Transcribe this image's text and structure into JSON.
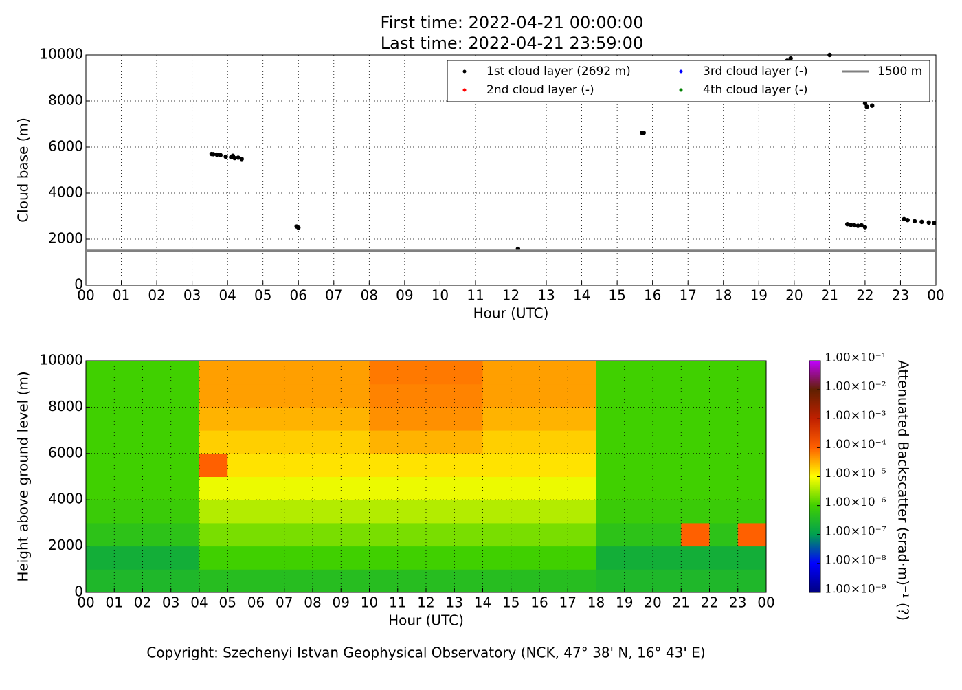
{
  "chart_data": [
    {
      "type": "scatter",
      "title": [
        "First time: 2022-04-21 00:00:00",
        "Last time: 2022-04-21 23:59:00"
      ],
      "x_label": "Hour (UTC)",
      "y_label": "Cloud base (m)",
      "xlim": [
        0,
        24
      ],
      "ylim": [
        0,
        10000
      ],
      "xticks": [
        {
          "value": 0,
          "label": "00"
        },
        {
          "value": 1,
          "label": "01"
        },
        {
          "value": 2,
          "label": "02"
        },
        {
          "value": 3,
          "label": "03"
        },
        {
          "value": 4,
          "label": "04"
        },
        {
          "value": 5,
          "label": "05"
        },
        {
          "value": 6,
          "label": "06"
        },
        {
          "value": 7,
          "label": "07"
        },
        {
          "value": 8,
          "label": "08"
        },
        {
          "value": 9,
          "label": "09"
        },
        {
          "value": 10,
          "label": "10"
        },
        {
          "value": 11,
          "label": "11"
        },
        {
          "value": 12,
          "label": "12"
        },
        {
          "value": 13,
          "label": "13"
        },
        {
          "value": 14,
          "label": "14"
        },
        {
          "value": 15,
          "label": "15"
        },
        {
          "value": 16,
          "label": "16"
        },
        {
          "value": 17,
          "label": "17"
        },
        {
          "value": 18,
          "label": "18"
        },
        {
          "value": 19,
          "label": "19"
        },
        {
          "value": 20,
          "label": "20"
        },
        {
          "value": 21,
          "label": "21"
        },
        {
          "value": 22,
          "label": "22"
        },
        {
          "value": 23,
          "label": "23"
        },
        {
          "value": 24,
          "label": "00"
        }
      ],
      "yticks": [
        0,
        2000,
        4000,
        6000,
        8000,
        10000
      ],
      "grid": true,
      "legend": "upper right",
      "series": [
        {
          "name": "1st cloud layer (2692 m)",
          "color": "#000000",
          "x": [
            3.55,
            3.6,
            3.7,
            3.8,
            3.95,
            4.1,
            4.15,
            4.2,
            4.3,
            4.4,
            5.95,
            6.0,
            12.2,
            15.7,
            15.75,
            19.8,
            19.9,
            21.0,
            22.0,
            22.05,
            22.2,
            21.5,
            21.6,
            21.7,
            21.8,
            21.9,
            22.0,
            23.1,
            23.2,
            23.4,
            23.6,
            23.8,
            23.95
          ],
          "values": [
            5700,
            5690,
            5670,
            5650,
            5580,
            5560,
            5620,
            5520,
            5540,
            5480,
            2550,
            2500,
            1580,
            6620,
            6620,
            9750,
            9850,
            10000,
            7900,
            7750,
            7800,
            2650,
            2620,
            2600,
            2580,
            2600,
            2520,
            2870,
            2830,
            2780,
            2750,
            2720,
            2700
          ]
        },
        {
          "name": "2nd cloud layer (-)",
          "color": "#ff0000",
          "x": [],
          "values": []
        },
        {
          "name": "3rd cloud layer (-)",
          "color": "#0000ff",
          "x": [],
          "values": []
        },
        {
          "name": "4th cloud layer (-)",
          "color": "#008000",
          "x": [],
          "values": []
        },
        {
          "name": "1500 m",
          "color": "#808080",
          "line": true,
          "values": [
            1500
          ]
        }
      ]
    },
    {
      "type": "heatmap",
      "x_label": "Hour (UTC)",
      "y_label": "Height above ground level (m)",
      "xlim": [
        0,
        24
      ],
      "ylim": [
        0,
        10000
      ],
      "xticks": [
        {
          "value": 0,
          "label": "00"
        },
        {
          "value": 1,
          "label": "01"
        },
        {
          "value": 2,
          "label": "02"
        },
        {
          "value": 3,
          "label": "03"
        },
        {
          "value": 4,
          "label": "04"
        },
        {
          "value": 5,
          "label": "05"
        },
        {
          "value": 6,
          "label": "06"
        },
        {
          "value": 7,
          "label": "07"
        },
        {
          "value": 8,
          "label": "08"
        },
        {
          "value": 9,
          "label": "09"
        },
        {
          "value": 10,
          "label": "10"
        },
        {
          "value": 11,
          "label": "11"
        },
        {
          "value": 12,
          "label": "12"
        },
        {
          "value": 13,
          "label": "13"
        },
        {
          "value": 14,
          "label": "14"
        },
        {
          "value": 15,
          "label": "15"
        },
        {
          "value": 16,
          "label": "16"
        },
        {
          "value": 17,
          "label": "17"
        },
        {
          "value": 18,
          "label": "18"
        },
        {
          "value": 19,
          "label": "19"
        },
        {
          "value": 20,
          "label": "20"
        },
        {
          "value": 21,
          "label": "21"
        },
        {
          "value": 22,
          "label": "22"
        },
        {
          "value": 23,
          "label": "23"
        },
        {
          "value": 24,
          "label": "00"
        }
      ],
      "yticks": [
        0,
        2000,
        4000,
        6000,
        8000,
        10000
      ],
      "grid": true,
      "x": [
        0,
        1,
        2,
        3,
        4,
        5,
        6,
        7,
        8,
        9,
        10,
        11,
        12,
        13,
        14,
        15,
        16,
        17,
        18,
        19,
        20,
        21,
        22,
        23,
        24
      ],
      "y": [
        0,
        1000,
        2000,
        3000,
        4000,
        5000,
        6000,
        7000,
        8000,
        9000,
        10000
      ],
      "values": [
        [
          3e-07,
          3e-07,
          3e-07,
          3e-07,
          4e-07,
          4e-07,
          4e-07,
          4e-07,
          4e-07,
          4e-07,
          4e-07,
          4e-07,
          4e-07,
          4e-07,
          4e-07,
          4e-07,
          4e-07,
          4e-07,
          3e-07,
          3e-07,
          3e-07,
          3e-07,
          3e-07,
          3e-07
        ],
        [
          2e-07,
          2e-07,
          2e-07,
          2e-07,
          1e-06,
          1e-06,
          1e-06,
          1e-06,
          1e-06,
          1e-06,
          1e-06,
          1e-06,
          1e-06,
          1e-06,
          1e-06,
          1e-06,
          1e-06,
          1e-06,
          2e-07,
          2e-07,
          2e-07,
          2e-07,
          2e-07,
          2e-07
        ],
        [
          5e-07,
          5e-07,
          5e-07,
          5e-07,
          2e-06,
          2e-06,
          2e-06,
          2e-06,
          2e-06,
          2e-06,
          2e-06,
          2e-06,
          2e-06,
          2e-06,
          2e-06,
          2e-06,
          2e-06,
          2e-06,
          5e-07,
          5e-07,
          5e-07,
          0.0001,
          5e-07,
          0.0001
        ],
        [
          8e-07,
          8e-07,
          8e-07,
          8e-07,
          4e-06,
          4e-06,
          4e-06,
          4e-06,
          4e-06,
          4e-06,
          4e-06,
          4e-06,
          4e-06,
          4e-06,
          4e-06,
          4e-06,
          4e-06,
          4e-06,
          8e-07,
          8e-07,
          8e-07,
          8e-07,
          8e-07,
          8e-07
        ],
        [
          1e-06,
          1e-06,
          1e-06,
          1e-06,
          8e-06,
          8e-06,
          8e-06,
          8e-06,
          8e-06,
          8e-06,
          8e-06,
          8e-06,
          8e-06,
          8e-06,
          8e-06,
          8e-06,
          8e-06,
          8e-06,
          1e-06,
          1e-06,
          1e-06,
          1e-06,
          1e-06,
          1e-06
        ],
        [
          1e-06,
          1e-06,
          1e-06,
          1e-06,
          0.0001,
          1.5e-05,
          1.5e-05,
          1.5e-05,
          1.5e-05,
          1.5e-05,
          1.5e-05,
          1.5e-05,
          1.5e-05,
          1.5e-05,
          1.5e-05,
          1.5e-05,
          1.5e-05,
          1.5e-05,
          1e-06,
          1e-06,
          1e-06,
          1e-06,
          1e-06,
          1e-06
        ],
        [
          1e-06,
          1e-06,
          1e-06,
          1e-06,
          2e-05,
          2e-05,
          2e-05,
          2e-05,
          2e-05,
          2e-05,
          3e-05,
          3e-05,
          3e-05,
          3e-05,
          2e-05,
          2e-05,
          2e-05,
          2e-05,
          1e-06,
          1e-06,
          1e-06,
          1e-06,
          1e-06,
          1e-06
        ],
        [
          1e-06,
          1e-06,
          1e-06,
          1e-06,
          3e-05,
          3e-05,
          3e-05,
          3e-05,
          3e-05,
          3e-05,
          5e-05,
          5e-05,
          5e-05,
          5e-05,
          3e-05,
          3e-05,
          3e-05,
          3e-05,
          1e-06,
          1e-06,
          1e-06,
          1e-06,
          1e-06,
          1e-06
        ],
        [
          1e-06,
          1e-06,
          1e-06,
          1e-06,
          4e-05,
          4e-05,
          4e-05,
          4e-05,
          4e-05,
          4e-05,
          6e-05,
          6e-05,
          6e-05,
          6e-05,
          4e-05,
          4e-05,
          4e-05,
          4e-05,
          1e-06,
          1e-06,
          1e-06,
          1e-06,
          1e-06,
          1e-06
        ],
        [
          1e-06,
          1e-06,
          1e-06,
          1e-06,
          4e-05,
          4e-05,
          4e-05,
          4e-05,
          4e-05,
          4e-05,
          7e-05,
          7e-05,
          7e-05,
          7e-05,
          4e-05,
          4e-05,
          4e-05,
          4e-05,
          1e-06,
          1e-06,
          1e-06,
          1e-06,
          1e-06,
          1e-06
        ]
      ],
      "clim": [
        1e-09,
        0.1
      ],
      "colormap": [
        "#000080",
        "#0000ff",
        "#00a050",
        "#40d000",
        "#ffff00",
        "#ff6000",
        "#c02000",
        "#602000",
        "#c000ff"
      ],
      "colorbar_label": "Attenuated Backscatter (srad·m)⁻¹ (?)",
      "colorbar_ticks": [
        {
          "value": 1e-09,
          "label": "1.00×10⁻⁹"
        },
        {
          "value": 1e-08,
          "label": "1.00×10⁻⁸"
        },
        {
          "value": 1e-07,
          "label": "1.00×10⁻⁷"
        },
        {
          "value": 1e-06,
          "label": "1.00×10⁻⁶"
        },
        {
          "value": 1e-05,
          "label": "1.00×10⁻⁵"
        },
        {
          "value": 0.0001,
          "label": "1.00×10⁻⁴"
        },
        {
          "value": 0.001,
          "label": "1.00×10⁻³"
        },
        {
          "value": 0.01,
          "label": "1.00×10⁻²"
        },
        {
          "value": 0.1,
          "label": "1.00×10⁻¹"
        }
      ]
    }
  ],
  "footer": "Copyright: Szechenyi Istvan Geophysical Observatory (NCK, 47° 38' N, 16° 43' E)"
}
